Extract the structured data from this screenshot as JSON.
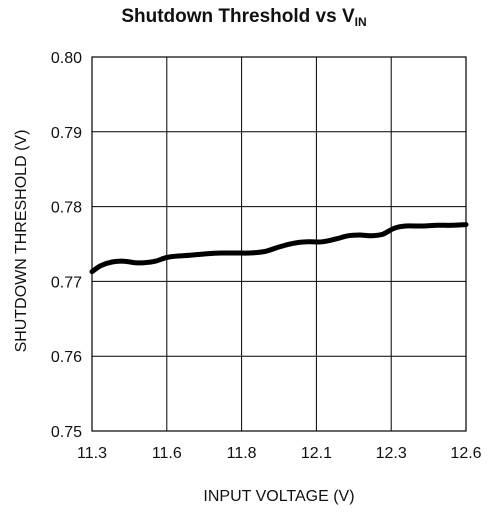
{
  "chart_data": {
    "type": "line",
    "title_main": "Shutdown Threshold vs V",
    "title_sub": "IN",
    "xlabel": "INPUT VOLTAGE (V)",
    "ylabel": "SHUTDOWN THRESHOLD (V)",
    "x_tick_labels": [
      "11.3",
      "11.6",
      "11.8",
      "12.1",
      "12.3",
      "12.6"
    ],
    "y_tick_labels": [
      "0.75",
      "0.76",
      "0.77",
      "0.78",
      "0.79",
      "0.80"
    ],
    "ylim": [
      0.75,
      0.8
    ],
    "grid": true,
    "series": [
      {
        "color": "#000000",
        "x": [
          11.3,
          11.33,
          11.37,
          11.41,
          11.45,
          11.48,
          11.52,
          11.56,
          11.6,
          11.64,
          11.7,
          11.75,
          11.8,
          11.85,
          11.9,
          11.95,
          12.0,
          12.05,
          12.1,
          12.15,
          12.19,
          12.23,
          12.27,
          12.31,
          12.35,
          12.39,
          12.45,
          12.5,
          12.55,
          12.6
        ],
        "y": [
          0.7713,
          0.7721,
          0.7726,
          0.7727,
          0.7725,
          0.7725,
          0.7727,
          0.7732,
          0.7734,
          0.7735,
          0.7737,
          0.7738,
          0.7738,
          0.7738,
          0.774,
          0.7746,
          0.7751,
          0.7753,
          0.7753,
          0.7757,
          0.7761,
          0.7762,
          0.7761,
          0.7763,
          0.7771,
          0.7774,
          0.7774,
          0.7775,
          0.7775,
          0.7776
        ]
      }
    ]
  }
}
